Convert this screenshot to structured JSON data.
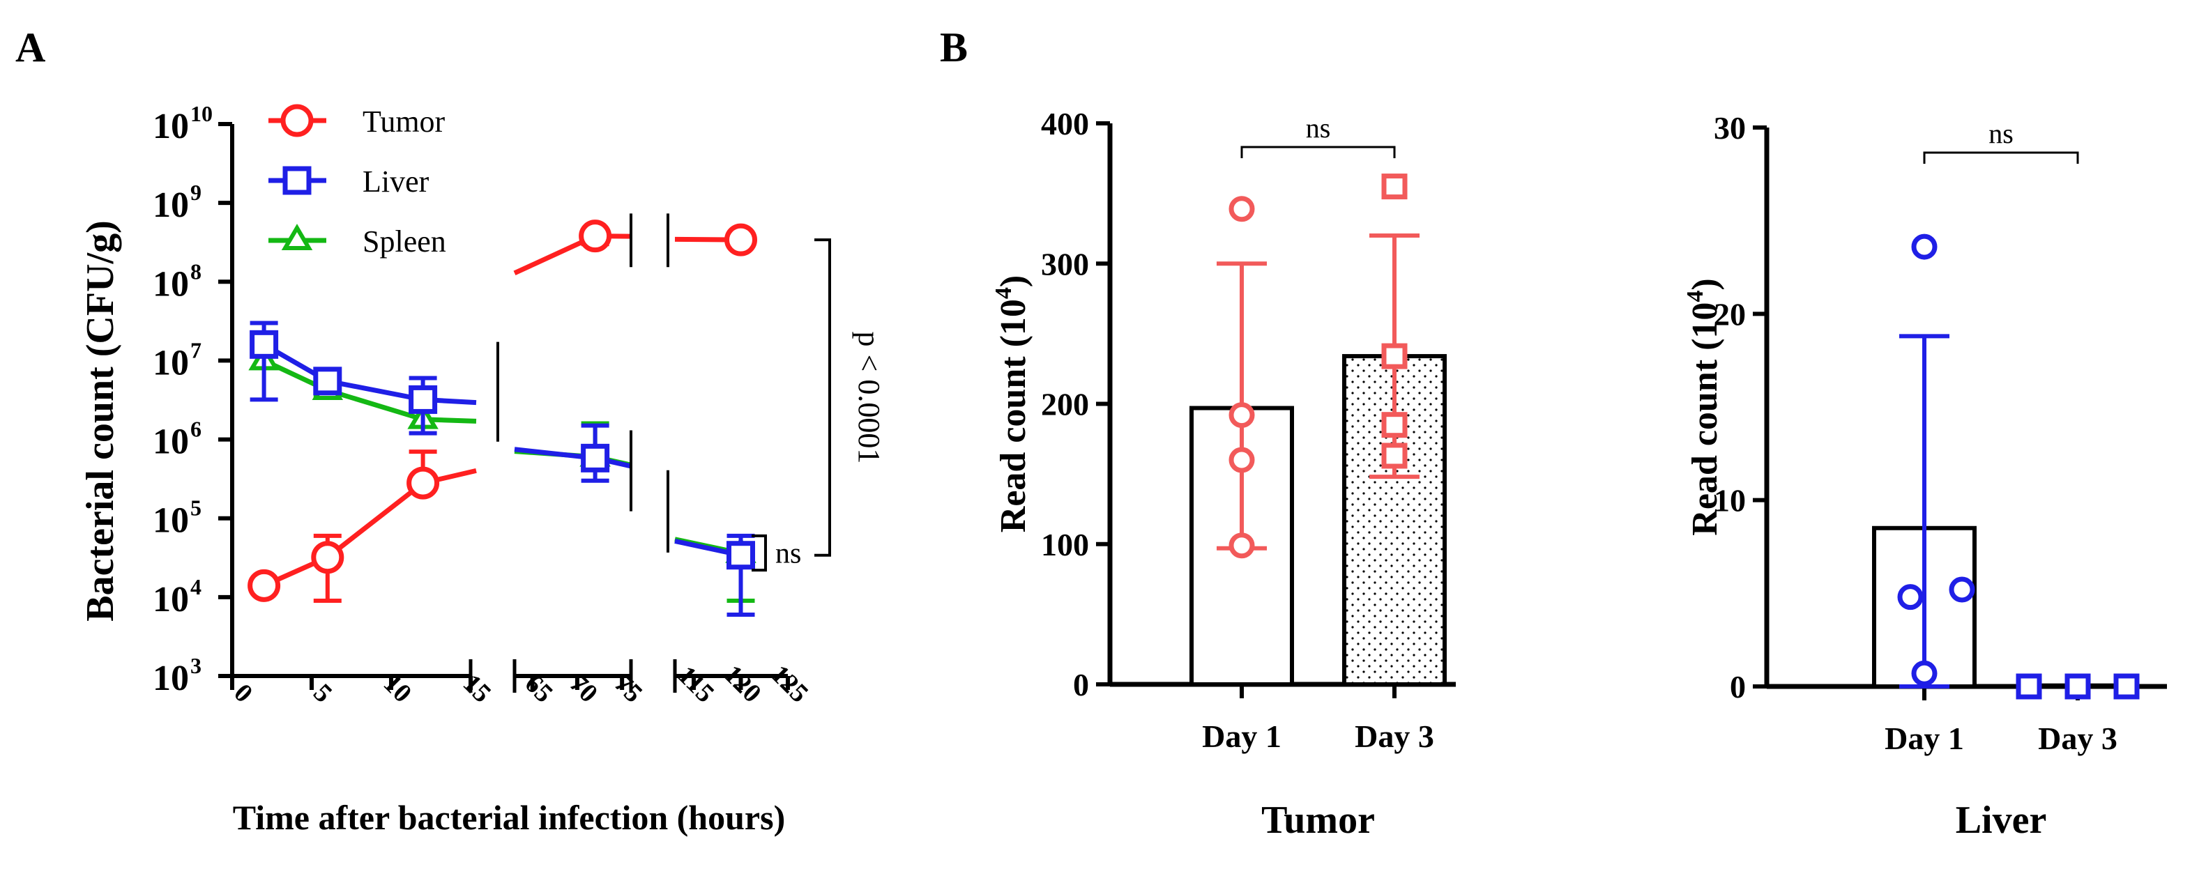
{
  "panel_labels": [
    "A",
    "B"
  ],
  "colors": {
    "tumor": "#ff2020",
    "liver": "#1f1fe6",
    "spleen": "#14b814",
    "axis": "#000000",
    "tumor_light": "#f25a5a",
    "liver_dots": "#1f1fe6"
  },
  "chart_data": [
    {
      "id": "A",
      "type": "line",
      "yscale": "log",
      "ylabel": "Bacterial count (CFU/g)",
      "xlabel": "Time after bacterial infection (hours)",
      "y_ticks": [
        {
          "exp": 3,
          "label_base": "10",
          "label_exp": "3"
        },
        {
          "exp": 4,
          "label_base": "10",
          "label_exp": "4"
        },
        {
          "exp": 5,
          "label_base": "10",
          "label_exp": "5"
        },
        {
          "exp": 6,
          "label_base": "10",
          "label_exp": "6"
        },
        {
          "exp": 7,
          "label_base": "10",
          "label_exp": "7"
        },
        {
          "exp": 8,
          "label_base": "10",
          "label_exp": "8"
        },
        {
          "exp": 9,
          "label_base": "10",
          "label_exp": "9"
        },
        {
          "exp": 10,
          "label_base": "10",
          "label_exp": "10"
        }
      ],
      "x_segments": [
        {
          "range": [
            0,
            15
          ],
          "ticks": [
            0,
            5,
            10,
            15
          ],
          "labels": [
            "0",
            "5",
            "10",
            "15"
          ]
        },
        {
          "range": [
            63,
            76
          ],
          "ticks": [
            65,
            70,
            75
          ],
          "labels": [
            "65",
            "70",
            "75"
          ]
        },
        {
          "range": [
            113,
            125
          ],
          "ticks": [
            115,
            120,
            125
          ],
          "labels": [
            "115",
            "120",
            "125"
          ]
        }
      ],
      "series": [
        {
          "name": "Tumor",
          "color_key": "tumor",
          "marker": "circle",
          "points": [
            {
              "x": 2,
              "y": 14000,
              "err": [
                14000,
                14000
              ]
            },
            {
              "x": 6,
              "y": 32000,
              "err": [
                9000,
                60000
              ]
            },
            {
              "x": 12,
              "y": 280000,
              "err": [
                280000,
                700000
              ]
            },
            {
              "x": 72,
              "y": 380000000,
              "err": [
                300000000,
                380000000
              ]
            },
            {
              "x": 120,
              "y": 340000000,
              "err": [
                340000000,
                340000000
              ]
            }
          ]
        },
        {
          "name": "Liver",
          "color_key": "liver",
          "marker": "square",
          "points": [
            {
              "x": 2,
              "y": 16000000,
              "err": [
                3200000,
                30000000
              ]
            },
            {
              "x": 6,
              "y": 5500000,
              "err": [
                4200000,
                6200000
              ]
            },
            {
              "x": 12,
              "y": 3200000,
              "err": [
                1200000,
                6000000
              ]
            },
            {
              "x": 72,
              "y": 580000,
              "err": [
                300000,
                1500000
              ]
            },
            {
              "x": 120,
              "y": 34000,
              "err": [
                6000,
                60000
              ]
            }
          ]
        },
        {
          "name": "Spleen",
          "color_key": "spleen",
          "marker": "triangle",
          "points": [
            {
              "x": 2,
              "y": 10000000,
              "err": [
                10000000,
                10000000
              ]
            },
            {
              "x": 6,
              "y": 4200000,
              "err": [
                3500000,
                4800000
              ]
            },
            {
              "x": 12,
              "y": 1800000,
              "err": [
                1800000,
                1800000
              ]
            },
            {
              "x": 72,
              "y": 600000,
              "err": [
                600000,
                1600000
              ]
            },
            {
              "x": 120,
              "y": 36000,
              "err": [
                9000,
                36000
              ]
            }
          ]
        }
      ],
      "annotations": {
        "p_text": "p < 0.0001",
        "ns_text": "ns"
      }
    },
    {
      "id": "B-tumor",
      "type": "bar",
      "title": "Tumor",
      "ylabel_base": "Read count (10",
      "ylabel_exp": "4",
      "ylabel_close": ")",
      "ylim": [
        0,
        400
      ],
      "y_ticks": [
        0,
        100,
        200,
        300,
        400
      ],
      "categories": [
        "Day 1",
        "Day 3"
      ],
      "bars": [
        {
          "category": "Day 1",
          "mean": 197,
          "sd_low": 97,
          "sd_high": 300,
          "points": [
            339,
            192,
            160,
            99
          ],
          "marker": "circle",
          "fill": "white"
        },
        {
          "category": "Day 3",
          "mean": 234,
          "sd_low": 148,
          "sd_high": 320,
          "points": [
            355,
            234,
            185,
            163
          ],
          "marker": "square",
          "fill": "dotted"
        }
      ],
      "significance": "ns"
    },
    {
      "id": "B-liver",
      "type": "bar",
      "title": "Liver",
      "ylabel_base": "Read count (10",
      "ylabel_exp": "4",
      "ylabel_close": ")",
      "ylim": [
        0,
        30
      ],
      "y_ticks": [
        0,
        10,
        20,
        30
      ],
      "categories": [
        "Day 1",
        "Day 3"
      ],
      "bars": [
        {
          "category": "Day 1",
          "mean": 8.5,
          "sd_low": 0,
          "sd_high": 18.8,
          "points": [
            23.6,
            5.2,
            4.8,
            0.7
          ],
          "marker": "circle",
          "fill": "white"
        },
        {
          "category": "Day 3",
          "mean": 0.05,
          "sd_low": 0,
          "sd_high": 0.05,
          "points": [
            0,
            0,
            0
          ],
          "marker": "square",
          "fill": "white"
        }
      ],
      "significance": "ns"
    }
  ]
}
